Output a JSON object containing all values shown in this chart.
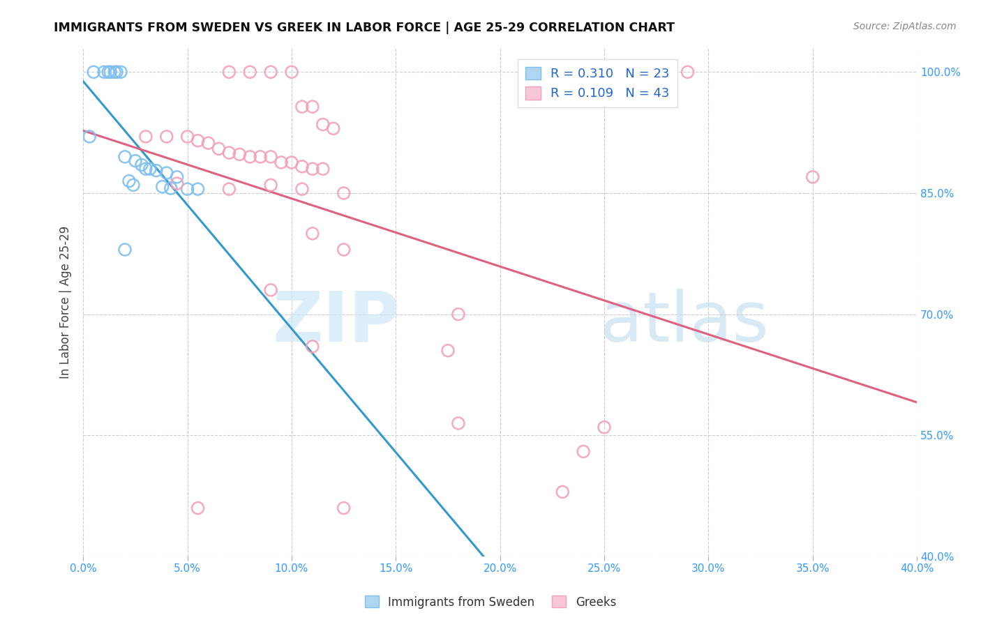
{
  "title": "IMMIGRANTS FROM SWEDEN VS GREEK IN LABOR FORCE | AGE 25-29 CORRELATION CHART",
  "source": "Source: ZipAtlas.com",
  "ylabel": "In Labor Force | Age 25-29",
  "legend_entries": [
    {
      "label": "R = 0.310   N = 23",
      "color": "#7fbfef"
    },
    {
      "label": "R = 0.109   N = 43",
      "color": "#f4a0b5"
    }
  ],
  "bottom_legend": [
    "Immigrants from Sweden",
    "Greeks"
  ],
  "sweden_color": "#7fbfef",
  "greek_color": "#f4a0b5",
  "sweden_line_color": "#3399cc",
  "greek_line_color": "#e06080",
  "sweden_points_x": [
    0.5,
    1.0,
    1.2,
    1.3,
    1.5,
    1.6,
    1.8,
    0.3,
    2.0,
    2.5,
    2.8,
    3.0,
    3.2,
    3.5,
    4.0,
    4.5,
    2.2,
    2.4,
    3.8,
    4.2,
    5.0,
    5.5,
    2.0
  ],
  "sweden_points_y": [
    1.0,
    1.0,
    1.0,
    1.0,
    1.0,
    1.0,
    1.0,
    0.92,
    0.895,
    0.89,
    0.885,
    0.88,
    0.88,
    0.878,
    0.875,
    0.87,
    0.865,
    0.86,
    0.858,
    0.856,
    0.855,
    0.855,
    0.78
  ],
  "greek_points_x": [
    7.0,
    8.0,
    9.0,
    10.0,
    10.5,
    11.0,
    11.5,
    12.0,
    3.0,
    4.0,
    5.0,
    5.5,
    6.0,
    6.5,
    7.0,
    7.5,
    8.0,
    8.5,
    9.0,
    9.5,
    10.0,
    10.5,
    11.0,
    11.5,
    4.5,
    9.0,
    7.0,
    10.5,
    12.5,
    11.0,
    12.5,
    9.0,
    18.0,
    11.0,
    17.5,
    18.0,
    25.0,
    24.0,
    5.5,
    23.0,
    29.0,
    12.5,
    35.0
  ],
  "greek_points_y": [
    1.0,
    1.0,
    1.0,
    1.0,
    0.957,
    0.957,
    0.935,
    0.93,
    0.92,
    0.92,
    0.92,
    0.915,
    0.912,
    0.905,
    0.9,
    0.898,
    0.895,
    0.895,
    0.895,
    0.888,
    0.888,
    0.883,
    0.88,
    0.88,
    0.862,
    0.86,
    0.855,
    0.855,
    0.85,
    0.8,
    0.78,
    0.73,
    0.7,
    0.66,
    0.655,
    0.565,
    0.56,
    0.53,
    0.46,
    0.48,
    1.0,
    0.46,
    0.87
  ],
  "xmin": 0.0,
  "xmax": 40.0,
  "ymin": 0.4,
  "ymax": 1.03,
  "yticks": [
    0.4,
    0.55,
    0.7,
    0.85,
    1.0
  ],
  "xticks": [
    0.0,
    5.0,
    10.0,
    15.0,
    20.0,
    25.0,
    30.0,
    35.0,
    40.0
  ],
  "grid_color": "#cccccc",
  "background_color": "#ffffff",
  "tick_color": "#3399ff",
  "watermark_zip_color": "#cde8f8",
  "watermark_atlas_color": "#b8d8f0"
}
